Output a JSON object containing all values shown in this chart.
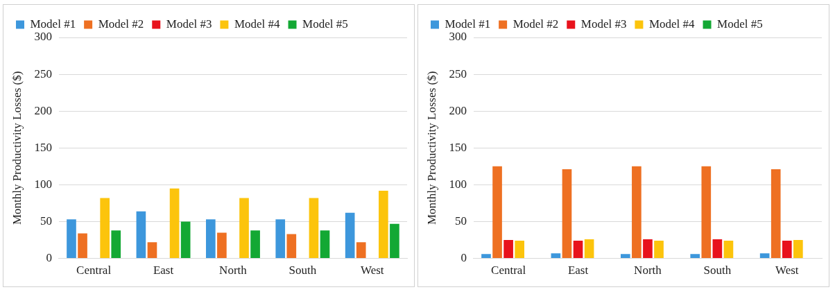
{
  "chart_data": [
    {
      "type": "bar",
      "ylabel": "Monthly Productivity Losses ($)",
      "categories": [
        "Central",
        "East",
        "North",
        "South",
        "West"
      ],
      "series": [
        {
          "name": "Model #1",
          "color": "#3d97dc",
          "values": [
            53,
            64,
            53,
            53,
            62
          ]
        },
        {
          "name": "Model #2",
          "color": "#ee7022",
          "values": [
            34,
            22,
            35,
            33,
            22
          ]
        },
        {
          "name": "Model #3",
          "color": "#e8121c",
          "values": [
            0,
            0,
            0,
            0,
            0
          ]
        },
        {
          "name": "Model #4",
          "color": "#fcc40c",
          "values": [
            82,
            95,
            82,
            82,
            92
          ]
        },
        {
          "name": "Model #5",
          "color": "#13a834",
          "values": [
            38,
            50,
            38,
            38,
            47
          ]
        }
      ],
      "ylim": [
        0,
        300
      ],
      "yticks": [
        0,
        50,
        100,
        150,
        200,
        250,
        300
      ],
      "grid": "y",
      "legend": "top left"
    },
    {
      "type": "bar",
      "ylabel": "Monthly Productivity Losses ($)",
      "categories": [
        "Central",
        "East",
        "North",
        "South",
        "West"
      ],
      "series": [
        {
          "name": "Model #1",
          "color": "#3d97dc",
          "values": [
            6,
            7,
            6,
            6,
            7
          ]
        },
        {
          "name": "Model #2",
          "color": "#ee7022",
          "values": [
            125,
            121,
            125,
            125,
            121
          ]
        },
        {
          "name": "Model #3",
          "color": "#e8121c",
          "values": [
            25,
            24,
            26,
            26,
            24
          ]
        },
        {
          "name": "Model #4",
          "color": "#fcc40c",
          "values": [
            24,
            26,
            24,
            24,
            25
          ]
        },
        {
          "name": "Model #5",
          "color": "#13a834",
          "values": [
            0,
            0,
            0,
            0,
            0
          ]
        }
      ],
      "ylim": [
        0,
        300
      ],
      "yticks": [
        0,
        50,
        100,
        150,
        200,
        250,
        300
      ],
      "grid": "y",
      "legend": "top left"
    }
  ]
}
